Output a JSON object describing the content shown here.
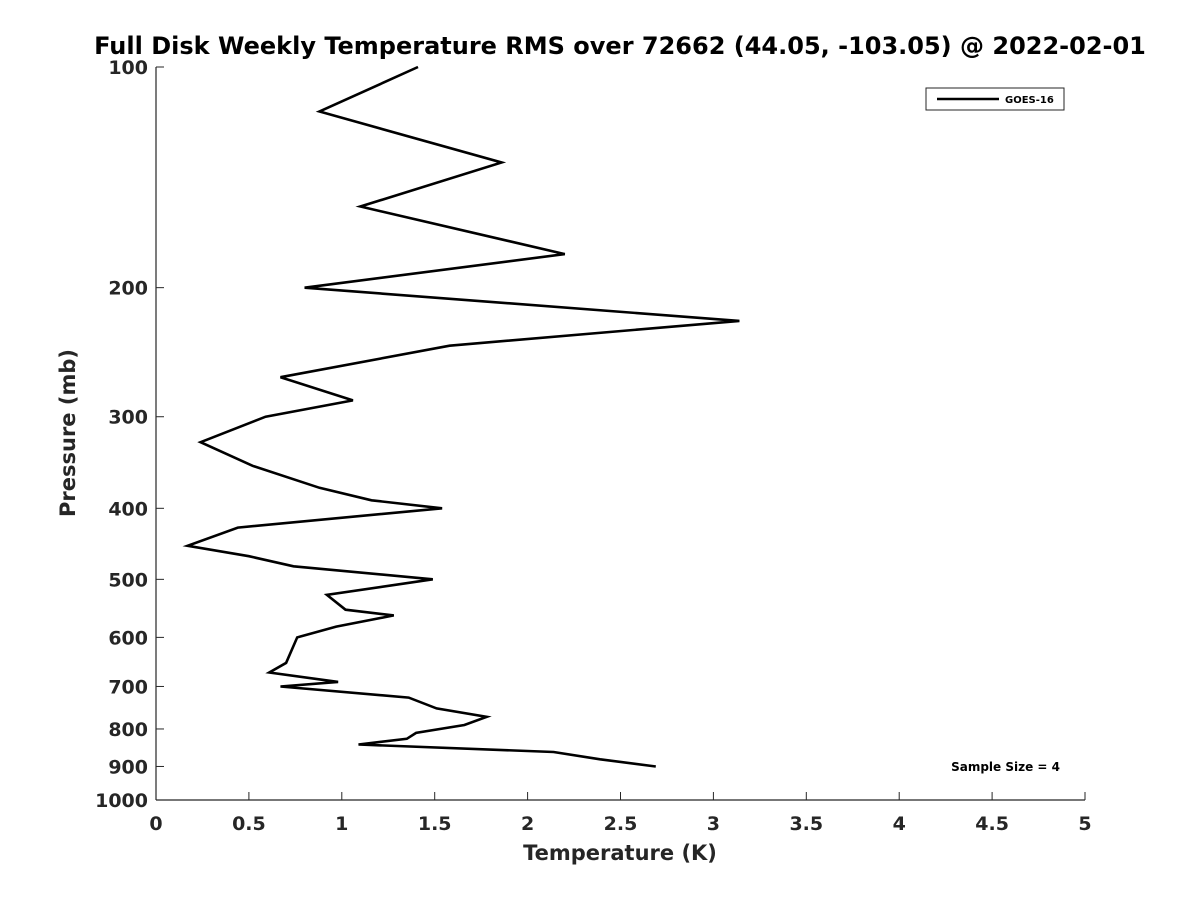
{
  "chart_data": {
    "type": "line",
    "title": "Full Disk Weekly Temperature RMS over 72662 (44.05, -103.05) @ 2022-02-01",
    "xlabel": "Temperature (K)",
    "ylabel": "Pressure (mb)",
    "xlim": [
      0,
      5
    ],
    "ylim": [
      100,
      1000
    ],
    "yscale": "log",
    "y_reversed": true,
    "x_ticks": [
      0,
      0.5,
      1,
      1.5,
      2,
      2.5,
      3,
      3.5,
      4,
      4.5,
      5
    ],
    "x_tick_labels": [
      "0",
      "0.5",
      "1",
      "1.5",
      "2",
      "2.5",
      "3",
      "3.5",
      "4",
      "4.5",
      "5"
    ],
    "y_ticks": [
      100,
      200,
      300,
      400,
      500,
      600,
      700,
      800,
      900,
      1000
    ],
    "y_tick_labels": [
      "100",
      "200",
      "300",
      "400",
      "500",
      "600",
      "700",
      "800",
      "900",
      "1000"
    ],
    "grid": false,
    "legend_position": "top-right",
    "series": [
      {
        "name": "GOES-16",
        "color": "#000000",
        "points": [
          {
            "x": 1.41,
            "y": 100
          },
          {
            "x": 0.88,
            "y": 115
          },
          {
            "x": 1.86,
            "y": 135
          },
          {
            "x": 1.1,
            "y": 155
          },
          {
            "x": 2.2,
            "y": 180
          },
          {
            "x": 0.8,
            "y": 200
          },
          {
            "x": 3.14,
            "y": 222
          },
          {
            "x": 1.58,
            "y": 240
          },
          {
            "x": 0.67,
            "y": 265
          },
          {
            "x": 1.06,
            "y": 285
          },
          {
            "x": 0.59,
            "y": 300
          },
          {
            "x": 0.24,
            "y": 325
          },
          {
            "x": 0.52,
            "y": 350
          },
          {
            "x": 0.88,
            "y": 375
          },
          {
            "x": 1.16,
            "y": 390
          },
          {
            "x": 1.54,
            "y": 400
          },
          {
            "x": 0.44,
            "y": 425
          },
          {
            "x": 0.17,
            "y": 450
          },
          {
            "x": 0.5,
            "y": 465
          },
          {
            "x": 0.74,
            "y": 480
          },
          {
            "x": 1.49,
            "y": 500
          },
          {
            "x": 0.92,
            "y": 525
          },
          {
            "x": 1.02,
            "y": 550
          },
          {
            "x": 1.28,
            "y": 560
          },
          {
            "x": 0.97,
            "y": 580
          },
          {
            "x": 0.76,
            "y": 600
          },
          {
            "x": 0.7,
            "y": 650
          },
          {
            "x": 0.61,
            "y": 670
          },
          {
            "x": 0.98,
            "y": 690
          },
          {
            "x": 0.67,
            "y": 700
          },
          {
            "x": 1.36,
            "y": 725
          },
          {
            "x": 1.51,
            "y": 750
          },
          {
            "x": 1.78,
            "y": 770
          },
          {
            "x": 1.66,
            "y": 790
          },
          {
            "x": 1.4,
            "y": 810
          },
          {
            "x": 1.35,
            "y": 825
          },
          {
            "x": 1.09,
            "y": 840
          },
          {
            "x": 2.14,
            "y": 860
          },
          {
            "x": 2.39,
            "y": 880
          },
          {
            "x": 2.69,
            "y": 900
          }
        ]
      }
    ],
    "annotations": [
      {
        "text": "Sample Size = 4",
        "position": "bottom-right"
      }
    ]
  }
}
